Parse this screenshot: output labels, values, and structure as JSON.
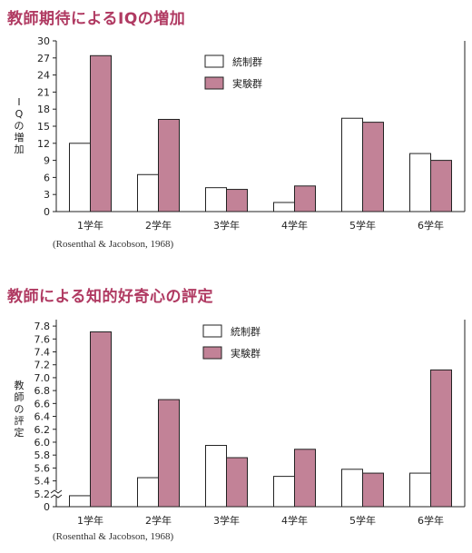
{
  "chart_data": [
    {
      "type": "bar",
      "title": "教師期待によるIQの増加",
      "ylabel": "IQの増加",
      "categories": [
        "1学年",
        "2学年",
        "3学年",
        "4学年",
        "5学年",
        "6学年"
      ],
      "series": [
        {
          "name": "統制群",
          "values": [
            12,
            6.5,
            4.2,
            1.6,
            16.4,
            10.2
          ]
        },
        {
          "name": "実験群",
          "values": [
            27.4,
            16.2,
            3.9,
            4.5,
            15.7,
            9.0
          ]
        }
      ],
      "ylim": [
        0,
        30
      ],
      "yticks": [
        0,
        3,
        6,
        9,
        12,
        15,
        18,
        21,
        24,
        27,
        30
      ],
      "legend_position": "top-center",
      "grid": false,
      "source": "(Rosenthal & Jacobson, 1968)",
      "colors": {
        "統制群": "#ffffff",
        "実験群": "#c28297"
      }
    },
    {
      "type": "bar",
      "title": "教師による知的好奇心の評定",
      "ylabel": "教師の評定",
      "categories": [
        "1学年",
        "2学年",
        "3学年",
        "4学年",
        "5学年",
        "6学年"
      ],
      "series": [
        {
          "name": "統制群",
          "values": [
            5.17,
            5.45,
            5.95,
            5.47,
            5.58,
            5.52
          ]
        },
        {
          "name": "実験群",
          "values": [
            7.71,
            6.66,
            5.76,
            5.89,
            5.52,
            7.12
          ]
        }
      ],
      "ylim": [
        5.0,
        7.9
      ],
      "axis_break": true,
      "ytick_labels": [
        "0",
        "5.2",
        "5.4",
        "5.6",
        "5.8",
        "6.0",
        "6.2",
        "6.4",
        "6.6",
        "6.8",
        "7.0",
        "7.2",
        "7.4",
        "7.6",
        "7.8"
      ],
      "legend_position": "top-center",
      "grid": false,
      "source": "(Rosenthal & Jacobson, 1968)",
      "colors": {
        "統制群": "#ffffff",
        "実験群": "#c28297"
      }
    }
  ]
}
